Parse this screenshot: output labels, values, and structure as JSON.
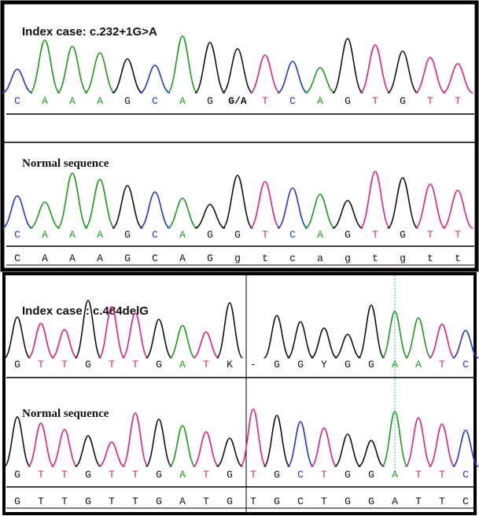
{
  "colors": {
    "A": "#1a9a1a",
    "C": "#1f35d6",
    "G": "#111111",
    "T": "#e0207a"
  },
  "panels": [
    {
      "title": "Index case: c.232+1G>A",
      "bases": [
        "C",
        "A",
        "A",
        "A",
        "G",
        "C",
        "A",
        "G",
        "G/A",
        "T",
        "C",
        "A",
        "G",
        "T",
        "G",
        "T",
        "T"
      ]
    },
    {
      "title": "Normal sequence",
      "bases": [
        "C",
        "A",
        "A",
        "A",
        "G",
        "C",
        "A",
        "G",
        "G",
        "T",
        "C",
        "A",
        "G",
        "T",
        "G",
        "T",
        "T"
      ],
      "reference": [
        "C",
        "A",
        "A",
        "A",
        "G",
        "C",
        "A",
        "G",
        "g",
        "t",
        "c",
        "a",
        "g",
        "t",
        "g",
        "t",
        "t"
      ]
    },
    {
      "title": "Index case : c.484delG",
      "bases": [
        "G",
        "T",
        "T",
        "G",
        "T",
        "T",
        "G",
        "A",
        "T",
        "K",
        "-",
        "G",
        "G",
        "Y",
        "G",
        "G",
        "A",
        "A",
        "T",
        "C"
      ]
    },
    {
      "title": "Normal sequence",
      "bases": [
        "G",
        "T",
        "T",
        "G",
        "T",
        "T",
        "G",
        "A",
        "T",
        "G",
        "T",
        "G",
        "C",
        "T",
        "G",
        "G",
        "A",
        "T",
        "T",
        "C"
      ],
      "reference": [
        "G",
        "T",
        "T",
        "G",
        "T",
        "T",
        "G",
        "A",
        "T",
        "G",
        "T",
        "G",
        "C",
        "T",
        "G",
        "G",
        "A",
        "T",
        "T",
        "C"
      ]
    }
  ]
}
